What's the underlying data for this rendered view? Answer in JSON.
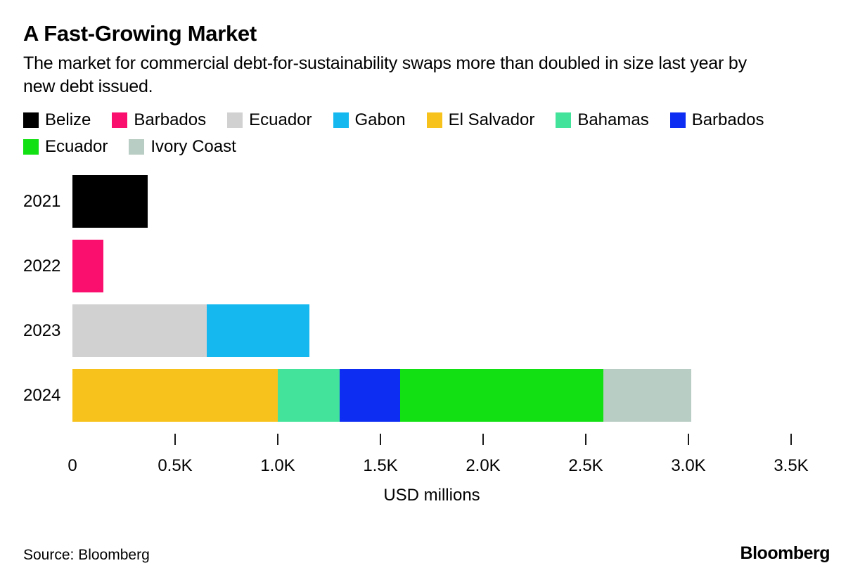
{
  "header": {
    "title": "A Fast-Growing Market",
    "subtitle": "The market for commercial debt-for-sustainability swaps more than doubled in size last year by new debt issued."
  },
  "chart_data": {
    "type": "bar",
    "orientation": "horizontal",
    "stacked": true,
    "title": "A Fast-Growing Market",
    "xlabel": "USD millions",
    "ylabel": "",
    "xlim": [
      0,
      3500
    ],
    "categories": [
      "2021",
      "2022",
      "2023",
      "2024"
    ],
    "legend": [
      {
        "label": "Belize",
        "color": "#000000"
      },
      {
        "label": "Barbados",
        "color": "#fa0f6e"
      },
      {
        "label": "Ecuador",
        "color": "#d1d1d1"
      },
      {
        "label": "Gabon",
        "color": "#15b9f0"
      },
      {
        "label": "El Salvador",
        "color": "#f8c21c"
      },
      {
        "label": "Bahamas",
        "color": "#44e39b"
      },
      {
        "label": "Barbados",
        "color": "#0d2df2"
      },
      {
        "label": "Ecuador",
        "color": "#12e012"
      },
      {
        "label": "Ivory Coast",
        "color": "#b8cdc3"
      }
    ],
    "bars": [
      {
        "category": "2021",
        "segments": [
          {
            "label": "Belize",
            "value": 365,
            "color": "#000000"
          }
        ]
      },
      {
        "category": "2022",
        "segments": [
          {
            "label": "Barbados",
            "value": 150,
            "color": "#fa0f6e"
          }
        ]
      },
      {
        "category": "2023",
        "segments": [
          {
            "label": "Ecuador",
            "value": 655,
            "color": "#d1d1d1"
          },
          {
            "label": "Gabon",
            "value": 500,
            "color": "#15b9f0"
          }
        ]
      },
      {
        "category": "2024",
        "segments": [
          {
            "label": "El Salvador",
            "value": 1000,
            "color": "#f8c21c"
          },
          {
            "label": "Bahamas",
            "value": 300,
            "color": "#44e39b"
          },
          {
            "label": "Barbados",
            "value": 295,
            "color": "#0d2df2"
          },
          {
            "label": "Ecuador",
            "value": 990,
            "color": "#12e012"
          },
          {
            "label": "Ivory Coast",
            "value": 430,
            "color": "#b8cdc3"
          }
        ]
      }
    ],
    "ticks": [
      {
        "value": 0,
        "label": "0"
      },
      {
        "value": 500,
        "label": "0.5K"
      },
      {
        "value": 1000,
        "label": "1.0K"
      },
      {
        "value": 1500,
        "label": "1.5K"
      },
      {
        "value": 2000,
        "label": "2.0K"
      },
      {
        "value": 2500,
        "label": "2.5K"
      },
      {
        "value": 3000,
        "label": "3.0K"
      },
      {
        "value": 3500,
        "label": "3.5K"
      }
    ],
    "grid": false,
    "legend_position": "top"
  },
  "footer": {
    "source": "Source: Bloomberg",
    "logo": "Bloomberg"
  }
}
